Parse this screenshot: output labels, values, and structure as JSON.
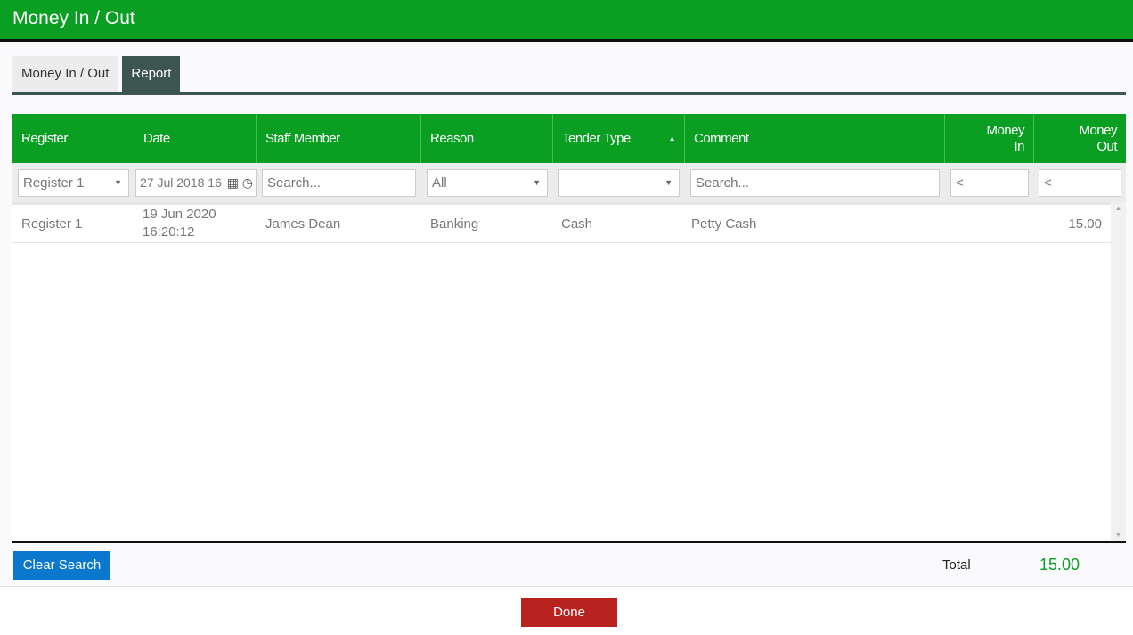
{
  "header": {
    "title": "Money In / Out"
  },
  "tabs": [
    {
      "label": "Money In / Out"
    },
    {
      "label": "Report"
    }
  ],
  "columns": [
    {
      "label": "Register"
    },
    {
      "label": "Date"
    },
    {
      "label": "Staff Member"
    },
    {
      "label": "Reason"
    },
    {
      "label": "Tender Type"
    },
    {
      "label": "Comment"
    },
    {
      "label": "Money In"
    },
    {
      "label": "Money Out"
    }
  ],
  "filters": {
    "register": "Register 1",
    "date": "27 Jul 2018 16",
    "staff_placeholder": "Search...",
    "reason": "All",
    "tender": "",
    "comment_placeholder": "Search...",
    "money_in": "<",
    "money_out": "<"
  },
  "rows": [
    {
      "register": "Register 1",
      "date": "19 Jun 2020",
      "time": "16:20:12",
      "staff": "James Dean",
      "reason": "Banking",
      "tender": "Cash",
      "comment": "Petty Cash",
      "money_in": "",
      "money_out": "15.00"
    }
  ],
  "footer": {
    "clear_label": "Clear Search",
    "total_label": "Total",
    "total_value": "15.00",
    "done_label": "Done"
  },
  "colors": {
    "header": "#0a9e22",
    "tab_active": "#3d5551",
    "clear": "#0a78cc",
    "done": "#b8221f",
    "total": "#0a9e22"
  }
}
